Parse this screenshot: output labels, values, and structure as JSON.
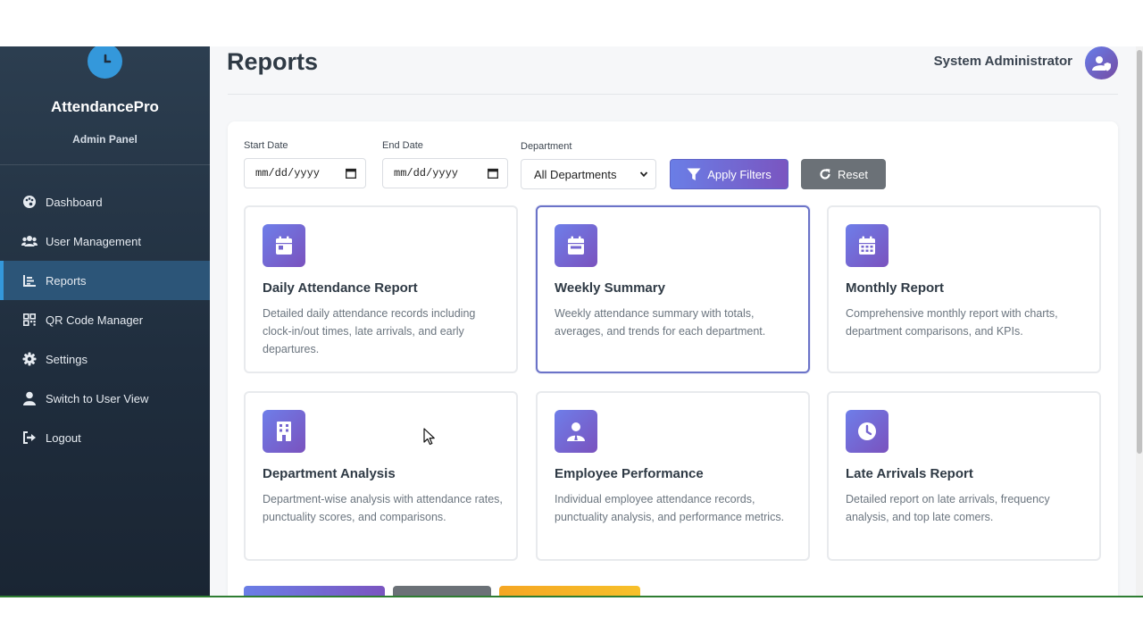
{
  "sidebar": {
    "brand_name": "AttendancePro",
    "brand_sub": "Admin Panel",
    "items": [
      {
        "label": "Dashboard",
        "icon": "palette-icon"
      },
      {
        "label": "User Management",
        "icon": "users-icon"
      },
      {
        "label": "Reports",
        "icon": "chart-bar-icon",
        "active": true
      },
      {
        "label": "QR Code Manager",
        "icon": "qrcode-icon"
      },
      {
        "label": "Settings",
        "icon": "gear-icon"
      },
      {
        "label": "Switch to User View",
        "icon": "user-icon"
      },
      {
        "label": "Logout",
        "icon": "logout-icon"
      }
    ]
  },
  "header": {
    "title": "Reports",
    "user_name": "System Administrator"
  },
  "filters": {
    "start_date_label": "Start Date",
    "start_date_placeholder": "mm/dd/yyyy",
    "end_date_label": "End Date",
    "end_date_placeholder": "mm/dd/yyyy",
    "department_label": "Department",
    "department_value": "All Departments",
    "apply_label": "Apply Filters",
    "reset_label": "Reset"
  },
  "reports": [
    {
      "title": "Daily Attendance Report",
      "desc": "Detailed daily attendance records including clock-in/out times, late arrivals, and early departures.",
      "icon": "calendar-day-icon"
    },
    {
      "title": "Weekly Summary",
      "desc": "Weekly attendance summary with totals, averages, and trends for each department.",
      "icon": "calendar-week-icon"
    },
    {
      "title": "Monthly Report",
      "desc": "Comprehensive monthly report with charts, department comparisons, and KPIs.",
      "icon": "calendar-month-icon"
    },
    {
      "title": "Department Analysis",
      "desc": "Department-wise analysis with attendance rates, punctuality scores, and comparisons.",
      "icon": "building-icon"
    },
    {
      "title": "Employee Performance",
      "desc": "Individual employee attendance records, punctuality analysis, and performance metrics.",
      "icon": "user-tie-icon"
    },
    {
      "title": "Late Arrivals Report",
      "desc": "Detailed report on late arrivals, frequency analysis, and top late comers.",
      "icon": "clock-icon"
    }
  ],
  "colors": {
    "sidebar_bg": "#2c3e50",
    "accent_blue": "#3498db",
    "gradient_start": "#667eea",
    "gradient_end": "#764ba2",
    "reset_gray": "#6b7177",
    "warning_orange": "#f5a623"
  }
}
